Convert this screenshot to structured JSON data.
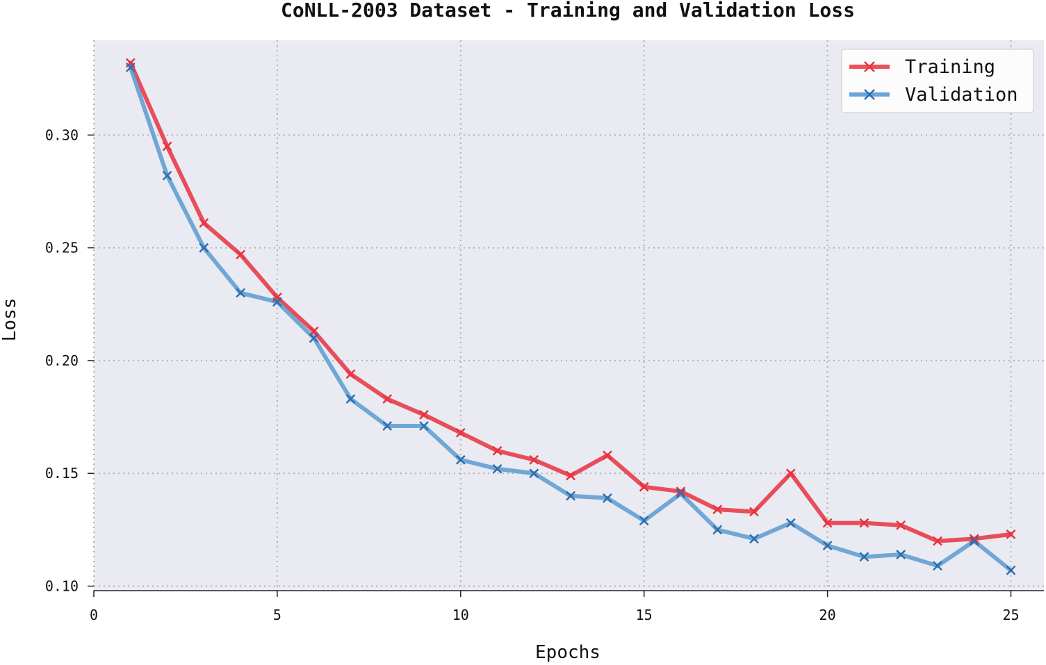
{
  "chart_data": {
    "type": "line",
    "title": "CoNLL-2003 Dataset - Training and Validation Loss",
    "xlabel": "Epochs",
    "ylabel": "Loss",
    "xlim": [
      0,
      25.9
    ],
    "ylim": [
      0.098,
      0.342
    ],
    "xticks": [
      0,
      5,
      10,
      15,
      20,
      25
    ],
    "xtick_labels": [
      "0",
      "5",
      "10",
      "15",
      "20",
      "25"
    ],
    "yticks": [
      0.1,
      0.15,
      0.2,
      0.25,
      0.3
    ],
    "ytick_labels": [
      "0.10",
      "0.15",
      "0.20",
      "0.25",
      "0.30"
    ],
    "grid": true,
    "legend_position": "top-right",
    "x": [
      1,
      2,
      3,
      4,
      5,
      6,
      7,
      8,
      9,
      10,
      11,
      12,
      13,
      14,
      15,
      16,
      17,
      18,
      19,
      20,
      21,
      22,
      23,
      24,
      25
    ],
    "series": [
      {
        "name": "Training",
        "color": "#e8323f",
        "marker": "x",
        "values": [
          0.332,
          0.295,
          0.261,
          0.247,
          0.228,
          0.213,
          0.194,
          0.183,
          0.176,
          0.168,
          0.16,
          0.156,
          0.149,
          0.158,
          0.144,
          0.142,
          0.134,
          0.133,
          0.15,
          0.128,
          0.128,
          0.127,
          0.12,
          0.121,
          0.123
        ]
      },
      {
        "name": "Validation",
        "color": "#5b9bd0",
        "marker": "x",
        "values": [
          0.33,
          0.282,
          0.25,
          0.23,
          0.226,
          0.21,
          0.183,
          0.171,
          0.171,
          0.156,
          0.152,
          0.15,
          0.14,
          0.139,
          0.129,
          0.141,
          0.125,
          0.121,
          0.128,
          0.118,
          0.113,
          0.114,
          0.109,
          0.12,
          0.107
        ]
      }
    ]
  }
}
